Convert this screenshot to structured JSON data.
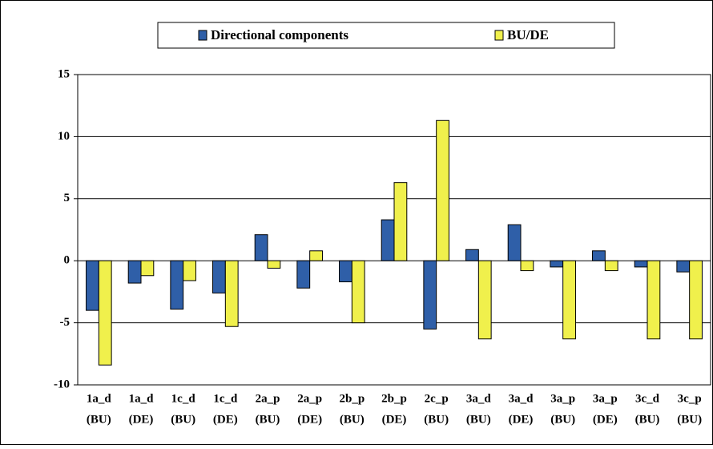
{
  "chart_data": {
    "type": "bar",
    "categories": [
      [
        "1a_d",
        "(BU)"
      ],
      [
        "1a_d",
        "(DE)"
      ],
      [
        "1c_d",
        "(BU)"
      ],
      [
        "1c_d",
        "(DE)"
      ],
      [
        "2a_p",
        "(BU)"
      ],
      [
        "2a_p",
        "(DE)"
      ],
      [
        "2b_p",
        "(BU)"
      ],
      [
        "2b_p",
        "(DE)"
      ],
      [
        "2c_p",
        "(BU)"
      ],
      [
        "3a_d",
        "(BU)"
      ],
      [
        "3a_d",
        "(DE)"
      ],
      [
        "3a_p",
        "(BU)"
      ],
      [
        "3a_p",
        "(DE)"
      ],
      [
        "3c_d",
        "(BU)"
      ],
      [
        "3c_p",
        "(BU)"
      ]
    ],
    "series": [
      {
        "name": "Directional components",
        "color": "#2f5fa8",
        "values": [
          -4.0,
          -1.8,
          -3.9,
          -2.6,
          2.1,
          -2.2,
          -1.7,
          3.3,
          -5.5,
          0.9,
          2.9,
          -0.5,
          0.8,
          -0.5,
          -0.9
        ]
      },
      {
        "name": "BU/DE",
        "color": "#f0f04c",
        "values": [
          -8.4,
          -1.2,
          -1.6,
          -5.3,
          -0.6,
          0.8,
          -5.0,
          6.3,
          11.3,
          -6.3,
          -0.8,
          -6.3,
          -0.8,
          -6.3,
          -6.3
        ]
      }
    ],
    "ylim": [
      -10,
      15
    ],
    "yticks": [
      -10,
      -5,
      0,
      5,
      10,
      15
    ],
    "grid": true,
    "legend": "top"
  }
}
